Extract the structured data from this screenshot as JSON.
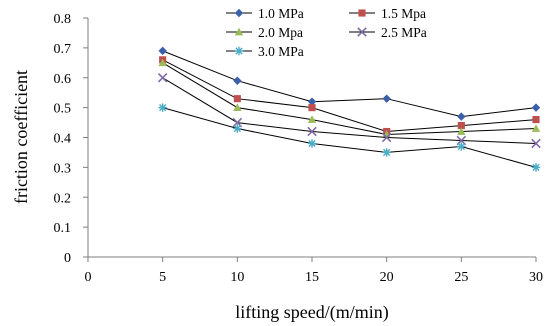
{
  "chart_data": {
    "type": "line",
    "title": "",
    "xlabel": "lifting speed/(m/min)",
    "ylabel": "friction coefficient",
    "x": [
      5,
      10,
      15,
      20,
      25,
      30
    ],
    "xlim": [
      0,
      30
    ],
    "ylim": [
      0,
      0.8
    ],
    "x_ticks": [
      "0",
      "5",
      "10",
      "15",
      "20",
      "25",
      "30"
    ],
    "y_ticks": [
      "0",
      "0.1",
      "0.2",
      "0.3",
      "0.4",
      "0.5",
      "0.6",
      "0.7",
      "0.8"
    ],
    "grid": false,
    "legend_position": "top",
    "series": [
      {
        "name": "1.0 MPa",
        "values": [
          0.69,
          0.59,
          0.52,
          0.53,
          0.47,
          0.5
        ],
        "color": "#3b5fa8",
        "marker": "diamond"
      },
      {
        "name": "1.5 Mpa",
        "values": [
          0.66,
          0.53,
          0.5,
          0.42,
          0.44,
          0.46
        ],
        "color": "#c0504d",
        "marker": "square"
      },
      {
        "name": "2.0 Mpa",
        "values": [
          0.65,
          0.5,
          0.46,
          0.41,
          0.42,
          0.43
        ],
        "color": "#9bbb59",
        "marker": "triangle"
      },
      {
        "name": "2.5 MPa",
        "values": [
          0.6,
          0.45,
          0.42,
          0.4,
          0.39,
          0.38
        ],
        "color": "#7e6aa6",
        "marker": "x"
      },
      {
        "name": "3.0 MPa",
        "values": [
          0.5,
          0.43,
          0.38,
          0.35,
          0.37,
          0.3
        ],
        "color": "#4bacc6",
        "marker": "star"
      }
    ]
  }
}
